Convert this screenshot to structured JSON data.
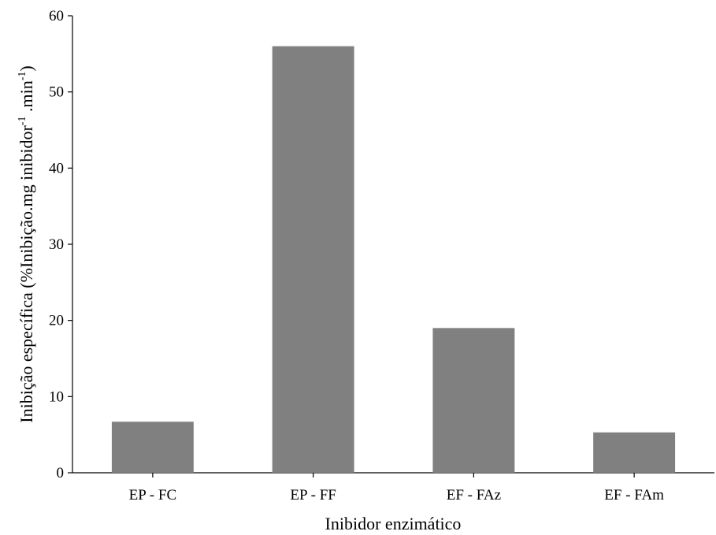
{
  "chart_data": {
    "type": "bar",
    "categories": [
      "EP - FC",
      "EP - FF",
      "EF - FAz",
      "EF - FAm"
    ],
    "series": [
      {
        "values": [
          6.7,
          56,
          19,
          5.3
        ]
      }
    ],
    "xlabel": "Inibidor enzimático",
    "ylabel": {
      "main": "Inibição específica (%Inibição.mg inibidor",
      "sup1": "-1",
      "mid": " .min",
      "sup2": "-1",
      "end": ")"
    },
    "ylim": [
      0,
      60
    ],
    "yticks": [
      "0",
      "10",
      "20",
      "30",
      "40",
      "50",
      "60"
    ],
    "grid": false,
    "legend": "none",
    "bar_color": "#808080"
  }
}
